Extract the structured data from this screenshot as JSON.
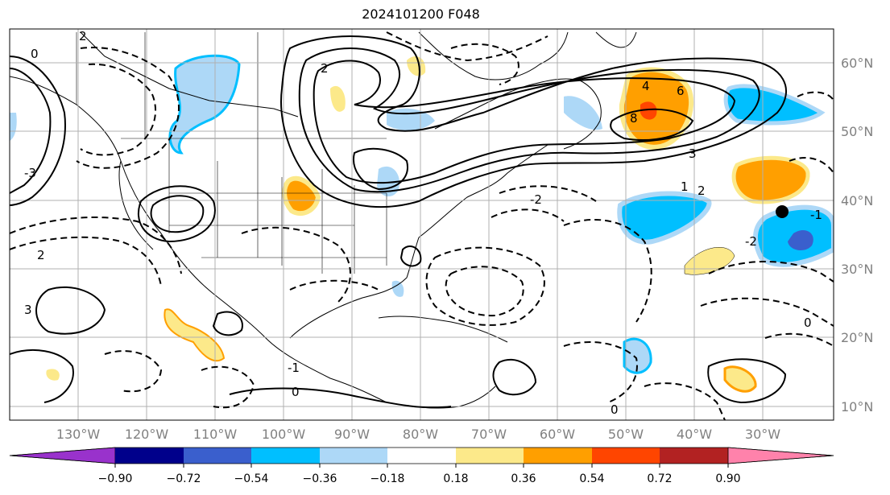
{
  "title": "2024101200 F048",
  "map": {
    "lat_labels": [
      "60°N",
      "50°N",
      "40°N",
      "30°N",
      "20°N",
      "10°N"
    ],
    "lon_labels": [
      "130°W",
      "120°W",
      "110°W",
      "100°W",
      "90°W",
      "80°W",
      "70°W",
      "60°W",
      "50°W",
      "40°W",
      "30°W"
    ],
    "contour_labels": [
      "2",
      "0",
      "4",
      "6",
      "8",
      "3",
      "2",
      "-2",
      "-1",
      "0",
      "-2",
      "1",
      "2",
      "0",
      "-1",
      "-3",
      "0",
      "3",
      "2"
    ],
    "marker_color": "#000000"
  },
  "colorbar": {
    "tick_labels": [
      "−0.90",
      "−0.72",
      "−0.54",
      "−0.36",
      "−0.18",
      "0.18",
      "0.36",
      "0.54",
      "0.72",
      "0.90"
    ],
    "colors": [
      "#9932cc",
      "#00008b",
      "#3a5fcd",
      "#00bfff",
      "#add8f7",
      "#ffffff",
      "#fce98a",
      "#ff9f00",
      "#ff4500",
      "#b22222",
      "#ff82ab"
    ]
  }
}
